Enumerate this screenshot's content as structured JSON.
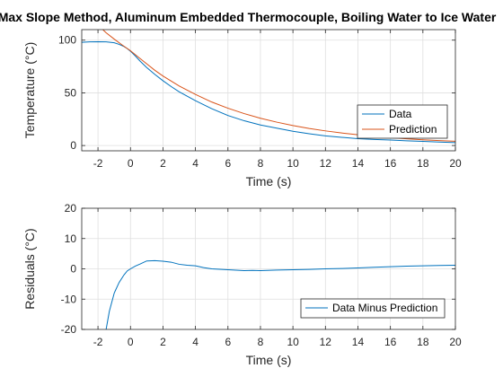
{
  "chart_data": [
    {
      "type": "line",
      "title": "Max Slope Method, Aluminum Embedded Thermocouple, Boiling Water to Ice Water",
      "xlabel": "Time (s)",
      "ylabel": "Temperature (°C)",
      "xlim": [
        -3,
        20
      ],
      "ylim": [
        -5,
        110
      ],
      "xticks": [
        -2,
        0,
        2,
        4,
        6,
        8,
        10,
        12,
        14,
        16,
        18,
        20
      ],
      "yticks": [
        0,
        50,
        100
      ],
      "grid": true,
      "legend": "bottom-right",
      "series": [
        {
          "name": "Data",
          "color": "#0072BD",
          "x": [
            -3,
            -2.5,
            -2,
            -1.5,
            -1,
            -0.7,
            -0.4,
            -0.2,
            0,
            0.3,
            0.6,
            1,
            1.5,
            2,
            2.5,
            3,
            4,
            5,
            6,
            7,
            8,
            9,
            10,
            11,
            12,
            13,
            14,
            15,
            16,
            17,
            18,
            19,
            20
          ],
          "y": [
            98,
            98.4,
            98.5,
            98.4,
            97.5,
            96,
            94,
            92,
            89.5,
            85,
            80,
            74,
            67.5,
            61.5,
            56,
            51,
            42.5,
            35,
            28.5,
            23.5,
            19.5,
            16.5,
            13.5,
            11.2,
            9.2,
            7.8,
            6.5,
            5.8,
            5.2,
            4.5,
            3.9,
            3.3,
            2.8
          ]
        },
        {
          "name": "Prediction",
          "color": "#D95319",
          "x": [
            -1.7,
            -1.5,
            -1,
            -0.5,
            0,
            0.5,
            1,
            1.5,
            2,
            3,
            4,
            5,
            6,
            7,
            8,
            9,
            10,
            11,
            12,
            13,
            14,
            15,
            16,
            17,
            18,
            19,
            20
          ],
          "y": [
            110,
            107,
            101,
            95.3,
            90,
            83.7,
            77.5,
            71.4,
            66,
            56.5,
            48.5,
            41.3,
            35.4,
            30.3,
            25.9,
            22.2,
            19,
            16.2,
            13.9,
            11.9,
            10.2,
            8.7,
            7.5,
            6.4,
            5.4,
            4.7,
            4
          ]
        }
      ]
    },
    {
      "type": "line",
      "xlabel": "Time (s)",
      "ylabel": "Residuals (°C)",
      "xlim": [
        -3,
        20
      ],
      "ylim": [
        -20,
        20
      ],
      "xticks": [
        -2,
        0,
        2,
        4,
        6,
        8,
        10,
        12,
        14,
        16,
        18,
        20
      ],
      "yticks": [
        -20,
        -10,
        0,
        10,
        20
      ],
      "grid": true,
      "legend": "bottom-right",
      "series": [
        {
          "name": "Data Minus Prediction",
          "color": "#0072BD",
          "x": [
            -1.5,
            -1.3,
            -1,
            -0.7,
            -0.4,
            -0.2,
            0,
            0.3,
            0.6,
            1,
            1.5,
            2,
            2.5,
            3,
            3.5,
            4,
            4.5,
            5,
            6,
            7,
            7.5,
            8,
            9,
            10,
            11,
            12,
            13,
            14,
            15,
            16,
            17,
            18,
            19,
            20
          ],
          "y": [
            -20,
            -14,
            -8,
            -4.5,
            -2,
            -0.7,
            0,
            0.9,
            1.6,
            2.6,
            2.7,
            2.5,
            2.2,
            1.5,
            1.2,
            1,
            0.4,
            0,
            -0.3,
            -0.6,
            -0.5,
            -0.6,
            -0.4,
            -0.3,
            -0.2,
            0,
            0.1,
            0.3,
            0.5,
            0.7,
            0.9,
            1,
            1.1,
            1.2
          ]
        }
      ]
    }
  ]
}
